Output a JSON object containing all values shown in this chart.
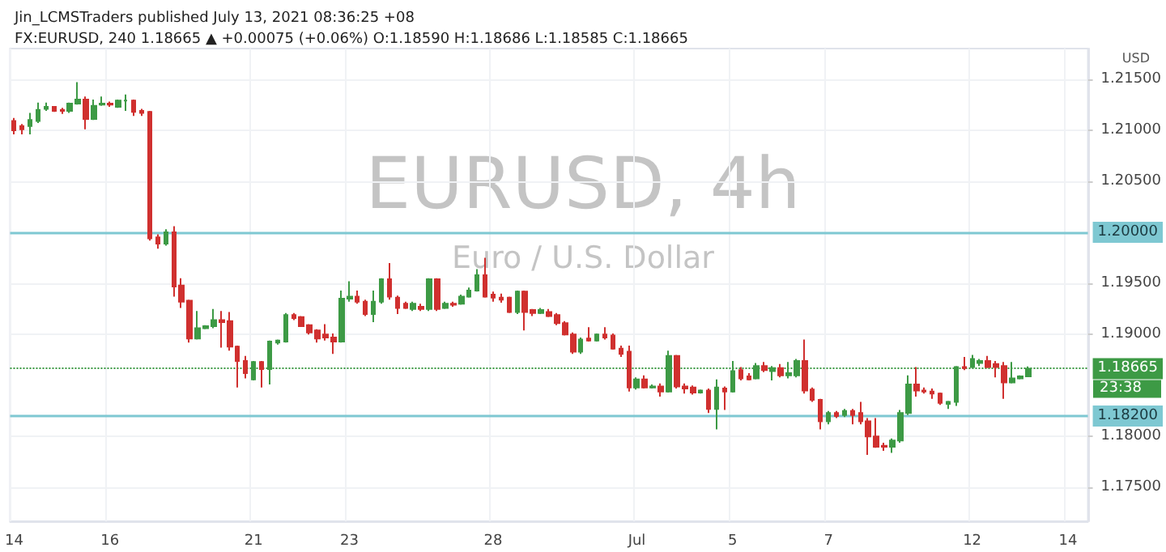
{
  "chart_data": {
    "type": "candlestick",
    "title": "Jin_LCMSTraders published July 13, 2021 08:36:25 +08",
    "subtitle": "FX:EURUSD, 240 1.18665 ▲ +0.00075 (+0.06%) O:1.18590 H:1.18686 L:1.18585 C:1.18665",
    "categories": [
      "14",
      null,
      null,
      null,
      null,
      null,
      null,
      null,
      null,
      null,
      null,
      null,
      "16",
      null,
      null,
      null,
      null,
      null,
      null,
      null,
      null,
      null,
      null,
      null,
      null,
      null,
      null,
      null,
      null,
      null,
      "21",
      null,
      null,
      null,
      null,
      null,
      null,
      null,
      null,
      null,
      null,
      null,
      "23",
      null,
      null,
      null,
      null,
      null,
      null,
      null,
      null,
      null,
      null,
      null,
      null,
      null,
      null,
      null,
      null,
      null,
      "28",
      null,
      null,
      null,
      null,
      null,
      null,
      null,
      null,
      null,
      null,
      null,
      null,
      null,
      null,
      null,
      null,
      null,
      "Jul",
      null,
      null,
      null,
      null,
      null,
      null,
      null,
      null,
      null,
      null,
      null,
      "5",
      null,
      null,
      null,
      null,
      null,
      null,
      null,
      null,
      null,
      null,
      null,
      "7",
      null,
      null,
      null,
      null,
      null,
      null,
      null,
      null,
      null,
      null,
      null,
      null,
      null,
      null,
      null,
      null,
      null,
      "12",
      null,
      null,
      null,
      null,
      null,
      null,
      null,
      null,
      null,
      null,
      null,
      "14",
      null,
      null
    ],
    "ohlc": [
      [
        1.2109,
        1.2112,
        1.2096,
        1.21
      ],
      [
        1.2104,
        1.2106,
        1.2096,
        1.2101
      ],
      [
        1.2104,
        1.2117,
        1.2096,
        1.211
      ],
      [
        1.2109,
        1.2127,
        1.2107,
        1.212
      ],
      [
        1.2121,
        1.2127,
        1.2119,
        1.2123
      ],
      [
        1.2123,
        1.2123,
        1.2118,
        1.2119
      ],
      [
        1.212,
        1.2122,
        1.2116,
        1.2119
      ],
      [
        1.2119,
        1.2127,
        1.2117,
        1.2126
      ],
      [
        1.2126,
        1.2147,
        1.2125,
        1.213
      ],
      [
        1.213,
        1.2133,
        1.2101,
        1.2111
      ],
      [
        1.2111,
        1.213,
        1.211,
        1.2124
      ],
      [
        1.2125,
        1.2133,
        1.2124,
        1.2126
      ],
      [
        1.2126,
        1.2128,
        1.2123,
        1.2125
      ],
      [
        1.2123,
        1.213,
        1.2122,
        1.2129
      ],
      [
        1.2129,
        1.2135,
        1.2119,
        1.2129
      ],
      [
        1.2129,
        1.213,
        1.2114,
        1.2118
      ],
      [
        1.2119,
        1.2121,
        1.2114,
        1.2117
      ],
      [
        1.2118,
        1.2119,
        1.1992,
        1.1994
      ],
      [
        1.1995,
        1.1998,
        1.1984,
        1.1989
      ],
      [
        1.1989,
        1.2003,
        1.1987,
        1.2
      ],
      [
        1.2,
        1.2006,
        1.1937,
        1.1947
      ],
      [
        1.1948,
        1.1955,
        1.1926,
        1.1932
      ],
      [
        1.1933,
        1.1934,
        1.1892,
        1.1896
      ],
      [
        1.1896,
        1.1923,
        1.1895,
        1.1906
      ],
      [
        1.1906,
        1.1909,
        1.1905,
        1.1908
      ],
      [
        1.1908,
        1.1925,
        1.1906,
        1.1914
      ],
      [
        1.1914,
        1.1923,
        1.1887,
        1.1912
      ],
      [
        1.1913,
        1.1922,
        1.1884,
        1.1888
      ],
      [
        1.1888,
        1.1889,
        1.1848,
        1.1874
      ],
      [
        1.1874,
        1.1879,
        1.1857,
        1.1862
      ],
      [
        1.1856,
        1.1874,
        1.1855,
        1.1873
      ],
      [
        1.1873,
        1.1874,
        1.1848,
        1.1866
      ],
      [
        1.1866,
        1.1894,
        1.1851,
        1.1893
      ],
      [
        1.1892,
        1.1895,
        1.189,
        1.1894
      ],
      [
        1.1893,
        1.1921,
        1.1892,
        1.1919
      ],
      [
        1.1919,
        1.1921,
        1.1914,
        1.1916
      ],
      [
        1.1917,
        1.1918,
        1.1908,
        1.1908
      ],
      [
        1.1909,
        1.191,
        1.19,
        1.1902
      ],
      [
        1.1904,
        1.1905,
        1.1892,
        1.1896
      ],
      [
        1.19,
        1.191,
        1.1894,
        1.1897
      ],
      [
        1.1897,
        1.1901,
        1.1881,
        1.1893
      ],
      [
        1.1893,
        1.1943,
        1.1892,
        1.1935
      ],
      [
        1.1935,
        1.1952,
        1.1932,
        1.1937
      ],
      [
        1.1937,
        1.1943,
        1.193,
        1.1932
      ],
      [
        1.1932,
        1.1934,
        1.1918,
        1.192
      ],
      [
        1.192,
        1.1943,
        1.1912,
        1.1932
      ],
      [
        1.1932,
        1.1955,
        1.193,
        1.1954
      ],
      [
        1.1954,
        1.197,
        1.1934,
        1.1937
      ],
      [
        1.1936,
        1.1938,
        1.192,
        1.1926
      ],
      [
        1.193,
        1.1932,
        1.1925,
        1.1926
      ],
      [
        1.1925,
        1.1932,
        1.1923,
        1.193
      ],
      [
        1.1927,
        1.193,
        1.1923,
        1.1925
      ],
      [
        1.1925,
        1.1955,
        1.1923,
        1.1954
      ],
      [
        1.1954,
        1.1955,
        1.1923,
        1.1925
      ],
      [
        1.1926,
        1.1932,
        1.1925,
        1.193
      ],
      [
        1.193,
        1.1932,
        1.1927,
        1.1929
      ],
      [
        1.193,
        1.1939,
        1.1929,
        1.1937
      ],
      [
        1.1937,
        1.1946,
        1.1936,
        1.1943
      ],
      [
        1.1943,
        1.1964,
        1.1942,
        1.1958
      ],
      [
        1.1958,
        1.1975,
        1.1936,
        1.1937
      ],
      [
        1.1939,
        1.1942,
        1.1932,
        1.1936
      ],
      [
        1.1936,
        1.194,
        1.1931,
        1.1934
      ],
      [
        1.1936,
        1.1937,
        1.1921,
        1.1922
      ],
      [
        1.1922,
        1.1943,
        1.192,
        1.1942
      ],
      [
        1.1942,
        1.1943,
        1.1904,
        1.1922
      ],
      [
        1.1924,
        1.1925,
        1.1918,
        1.1921
      ],
      [
        1.1921,
        1.1926,
        1.192,
        1.1924
      ],
      [
        1.1922,
        1.1925,
        1.1917,
        1.1918
      ],
      [
        1.1919,
        1.1921,
        1.1909,
        1.1911
      ],
      [
        1.1911,
        1.1913,
        1.1899,
        1.19
      ],
      [
        1.19,
        1.1902,
        1.1881,
        1.1883
      ],
      [
        1.1883,
        1.1897,
        1.1881,
        1.1895
      ],
      [
        1.1896,
        1.1907,
        1.1893,
        1.1894
      ],
      [
        1.1894,
        1.1901,
        1.1893,
        1.19
      ],
      [
        1.19,
        1.1907,
        1.1895,
        1.1897
      ],
      [
        1.1899,
        1.1901,
        1.1885,
        1.1886
      ],
      [
        1.1886,
        1.1889,
        1.1878,
        1.1881
      ],
      [
        1.1883,
        1.1889,
        1.1844,
        1.1848
      ],
      [
        1.1848,
        1.1858,
        1.1846,
        1.1856
      ],
      [
        1.1856,
        1.186,
        1.1847,
        1.1848
      ],
      [
        1.1848,
        1.1851,
        1.1847,
        1.1849
      ],
      [
        1.1849,
        1.1852,
        1.1839,
        1.1844
      ],
      [
        1.1844,
        1.1884,
        1.1843,
        1.1879
      ],
      [
        1.1879,
        1.188,
        1.1847,
        1.1849
      ],
      [
        1.1849,
        1.1852,
        1.1842,
        1.1847
      ],
      [
        1.1848,
        1.185,
        1.1841,
        1.1843
      ],
      [
        1.1843,
        1.1846,
        1.1842,
        1.1845
      ],
      [
        1.1845,
        1.1847,
        1.1823,
        1.1827
      ],
      [
        1.1827,
        1.1856,
        1.1807,
        1.1848
      ],
      [
        1.1847,
        1.1849,
        1.1826,
        1.1844
      ],
      [
        1.1844,
        1.1874,
        1.1843,
        1.1864
      ],
      [
        1.1865,
        1.1868,
        1.1855,
        1.1857
      ],
      [
        1.1859,
        1.1862,
        1.1855,
        1.1856
      ],
      [
        1.1857,
        1.1872,
        1.1856,
        1.1869
      ],
      [
        1.1869,
        1.1873,
        1.1863,
        1.1865
      ],
      [
        1.1864,
        1.1869,
        1.1855,
        1.1867
      ],
      [
        1.1867,
        1.1871,
        1.1858,
        1.186
      ],
      [
        1.186,
        1.1873,
        1.1857,
        1.1862
      ],
      [
        1.186,
        1.1876,
        1.1858,
        1.1874
      ],
      [
        1.1874,
        1.1895,
        1.1842,
        1.1845
      ],
      [
        1.1846,
        1.1848,
        1.1834,
        1.1836
      ],
      [
        1.1836,
        1.1837,
        1.1807,
        1.1815
      ],
      [
        1.1815,
        1.1825,
        1.1812,
        1.1823
      ],
      [
        1.1823,
        1.1825,
        1.1818,
        1.182
      ],
      [
        1.1821,
        1.1827,
        1.1819,
        1.1825
      ],
      [
        1.1825,
        1.1827,
        1.1812,
        1.1821
      ],
      [
        1.1823,
        1.1834,
        1.1812,
        1.1815
      ],
      [
        1.1815,
        1.1818,
        1.1782,
        1.18
      ],
      [
        1.18,
        1.1818,
        1.1789,
        1.179
      ],
      [
        1.1791,
        1.1794,
        1.1786,
        1.179
      ],
      [
        1.179,
        1.1798,
        1.1784,
        1.1796
      ],
      [
        1.1796,
        1.1826,
        1.1794,
        1.1823
      ],
      [
        1.1823,
        1.186,
        1.1821,
        1.1851
      ],
      [
        1.1851,
        1.1868,
        1.1839,
        1.1845
      ],
      [
        1.1845,
        1.1848,
        1.1842,
        1.1844
      ],
      [
        1.1844,
        1.1847,
        1.1837,
        1.1842
      ],
      [
        1.1842,
        1.1843,
        1.1831,
        1.1833
      ],
      [
        1.1832,
        1.1835,
        1.1827,
        1.1834
      ],
      [
        1.1834,
        1.1869,
        1.183,
        1.1868
      ],
      [
        1.1868,
        1.1878,
        1.1865,
        1.1867
      ],
      [
        1.1868,
        1.188,
        1.1867,
        1.1876
      ],
      [
        1.1872,
        1.1876,
        1.1869,
        1.1874
      ],
      [
        1.1874,
        1.1879,
        1.1867,
        1.1868
      ],
      [
        1.1871,
        1.1874,
        1.1858,
        1.1868
      ],
      [
        1.1869,
        1.1873,
        1.1837,
        1.1853
      ],
      [
        1.1853,
        1.1873,
        1.1852,
        1.1857
      ],
      [
        1.1857,
        1.186,
        1.1856,
        1.1859
      ],
      [
        1.1859,
        1.18686,
        1.18585,
        1.18665
      ],
      null,
      null,
      null,
      null,
      null,
      null,
      null
    ],
    "ylim": [
      1.1717,
      1.218
    ],
    "yticks": [
      {
        "value": 1.175,
        "label": "1.17500"
      },
      {
        "value": 1.18,
        "label": "1.18000"
      },
      {
        "value": 1.19,
        "label": "1.19000"
      },
      {
        "value": 1.195,
        "label": "1.19500"
      },
      {
        "value": 1.205,
        "label": "1.20500"
      },
      {
        "value": 1.21,
        "label": "1.21000"
      },
      {
        "value": 1.215,
        "label": "1.21500"
      }
    ],
    "grid": true,
    "ref_lines": [
      {
        "axis": "y",
        "value": 1.2,
        "label": "1.20000",
        "color": "#7ec8d2",
        "line_style": "solid"
      },
      {
        "axis": "y",
        "value": 1.182,
        "label": "1.18200",
        "color": "#7ec8d2",
        "line_style": "solid"
      },
      {
        "axis": "y",
        "value": 1.18665,
        "label": "1.18665",
        "color": "#3d9a45",
        "line_style": "dotted"
      }
    ],
    "annotations": [
      "EURUSD, 4h",
      "Euro / U.S. Dollar",
      "USD",
      "23:38"
    ]
  }
}
